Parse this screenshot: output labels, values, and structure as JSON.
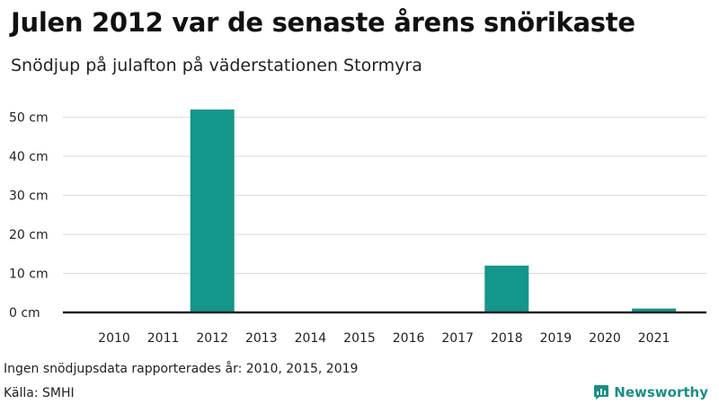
{
  "chart_data": {
    "type": "bar",
    "title": "Julen 2012 var de senaste årens snörikaste",
    "subtitle": "Snödjup på julafton på väderstationen Stormyra",
    "categories": [
      "2010",
      "2011",
      "2012",
      "2013",
      "2014",
      "2015",
      "2016",
      "2017",
      "2018",
      "2019",
      "2020",
      "2021"
    ],
    "values": [
      0,
      0,
      52,
      0,
      0,
      0,
      0,
      0,
      12,
      0,
      0,
      1
    ],
    "y_ticks": [
      0,
      10,
      20,
      30,
      40,
      50
    ],
    "y_tick_labels": [
      "0 cm",
      "10 cm",
      "20 cm",
      "30 cm",
      "40 cm",
      "50 cm"
    ],
    "ylim": [
      0,
      52
    ],
    "xlabel": "",
    "ylabel": "",
    "grid": true,
    "bar_color": "#14968a"
  },
  "footer": {
    "note": "Ingen snödjupsdata rapporterades år: 2010, 2015, 2019",
    "source": "Källa: SMHI",
    "brand": "Newsworthy",
    "brand_icon": "newsworthy-logo-icon"
  }
}
